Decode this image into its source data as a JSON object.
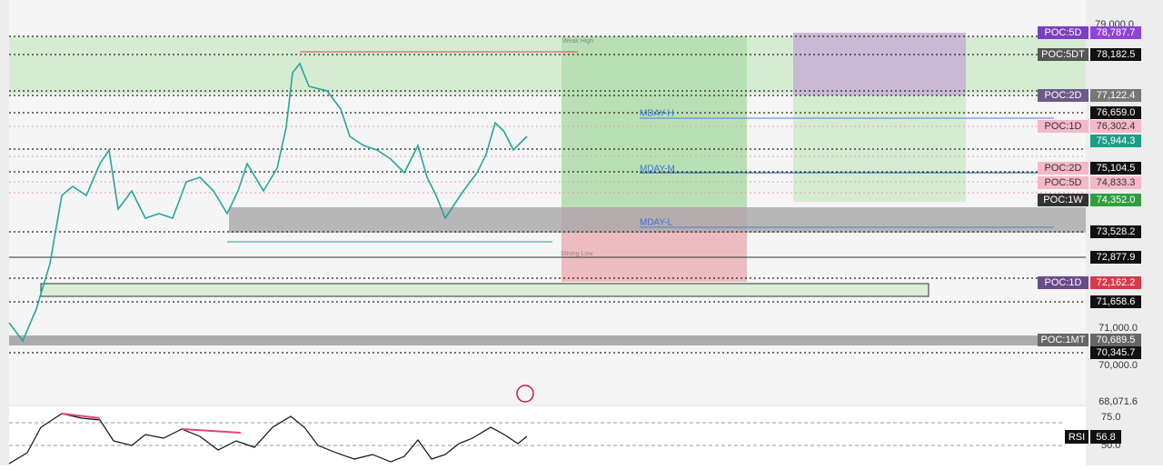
{
  "price_axis": {
    "top": "79,000.0",
    "mid": "71,000.0",
    "bottom": "70,000.0",
    "rsi_bottom": "68,071.6"
  },
  "price_tags": [
    {
      "tag": "POC:5D",
      "price": "78,787.7"
    },
    {
      "tag": "POC:5DT",
      "price": "78,182.5"
    },
    {
      "tag": "POC:2D",
      "price": "77,122.4"
    },
    {
      "price": "76,659.0"
    },
    {
      "tag": "POC:1D",
      "price": "76,302.4"
    },
    {
      "price": "75,944.3"
    },
    {
      "tag": "POC:2D",
      "price": "75,104.5"
    },
    {
      "tag": "POC:5D",
      "price": "74,833.3"
    },
    {
      "tag": "POC:1W",
      "price": "74,352.0"
    },
    {
      "price": "73,528.2"
    },
    {
      "price": "72,877.9"
    },
    {
      "tag": "POC:1D",
      "price": "72,162.2"
    },
    {
      "price": "71,658.6"
    },
    {
      "tag": "POC:1MT",
      "price": "70,689.5"
    },
    {
      "price": "70,345.7"
    }
  ],
  "annotations": {
    "weak_high": "Weak High",
    "strong_low": "Strong Low",
    "mday_h": "MDAY-H",
    "mday_m": "MDAY-M",
    "mday_l": "MDAY-L"
  },
  "rsi": {
    "label": "RSI",
    "value": "56.8",
    "upper": "75.0",
    "lower": "50.0"
  }
}
